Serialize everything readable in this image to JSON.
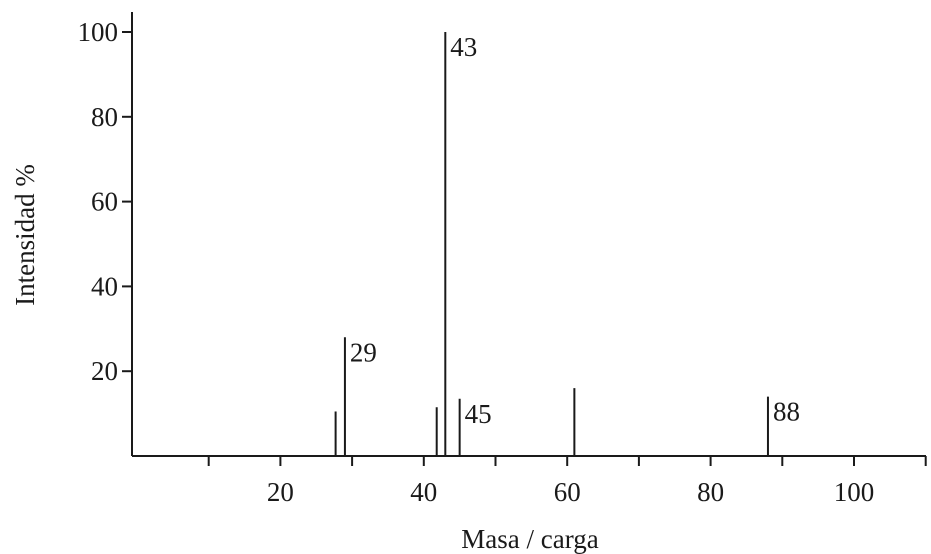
{
  "chart_data": {
    "type": "bar",
    "title": "",
    "xlabel": "Masa / carga",
    "ylabel": "Intensidad %",
    "xlim": [
      0,
      110
    ],
    "ylim": [
      0,
      100
    ],
    "x_ticks_labeled": [
      20,
      40,
      60,
      80,
      100
    ],
    "x_ticks_minor": [
      10,
      30,
      50,
      70,
      90,
      110
    ],
    "y_ticks": [
      20,
      40,
      60,
      80,
      100
    ],
    "grid": false,
    "peaks": [
      {
        "x": 27.7,
        "y": 10.5,
        "label": ""
      },
      {
        "x": 29,
        "y": 28,
        "label": "29"
      },
      {
        "x": 41.8,
        "y": 11.5,
        "label": ""
      },
      {
        "x": 43,
        "y": 100,
        "label": "43"
      },
      {
        "x": 45,
        "y": 13.5,
        "label": "45"
      },
      {
        "x": 61,
        "y": 16,
        "label": ""
      },
      {
        "x": 88,
        "y": 14,
        "label": "88"
      }
    ]
  }
}
